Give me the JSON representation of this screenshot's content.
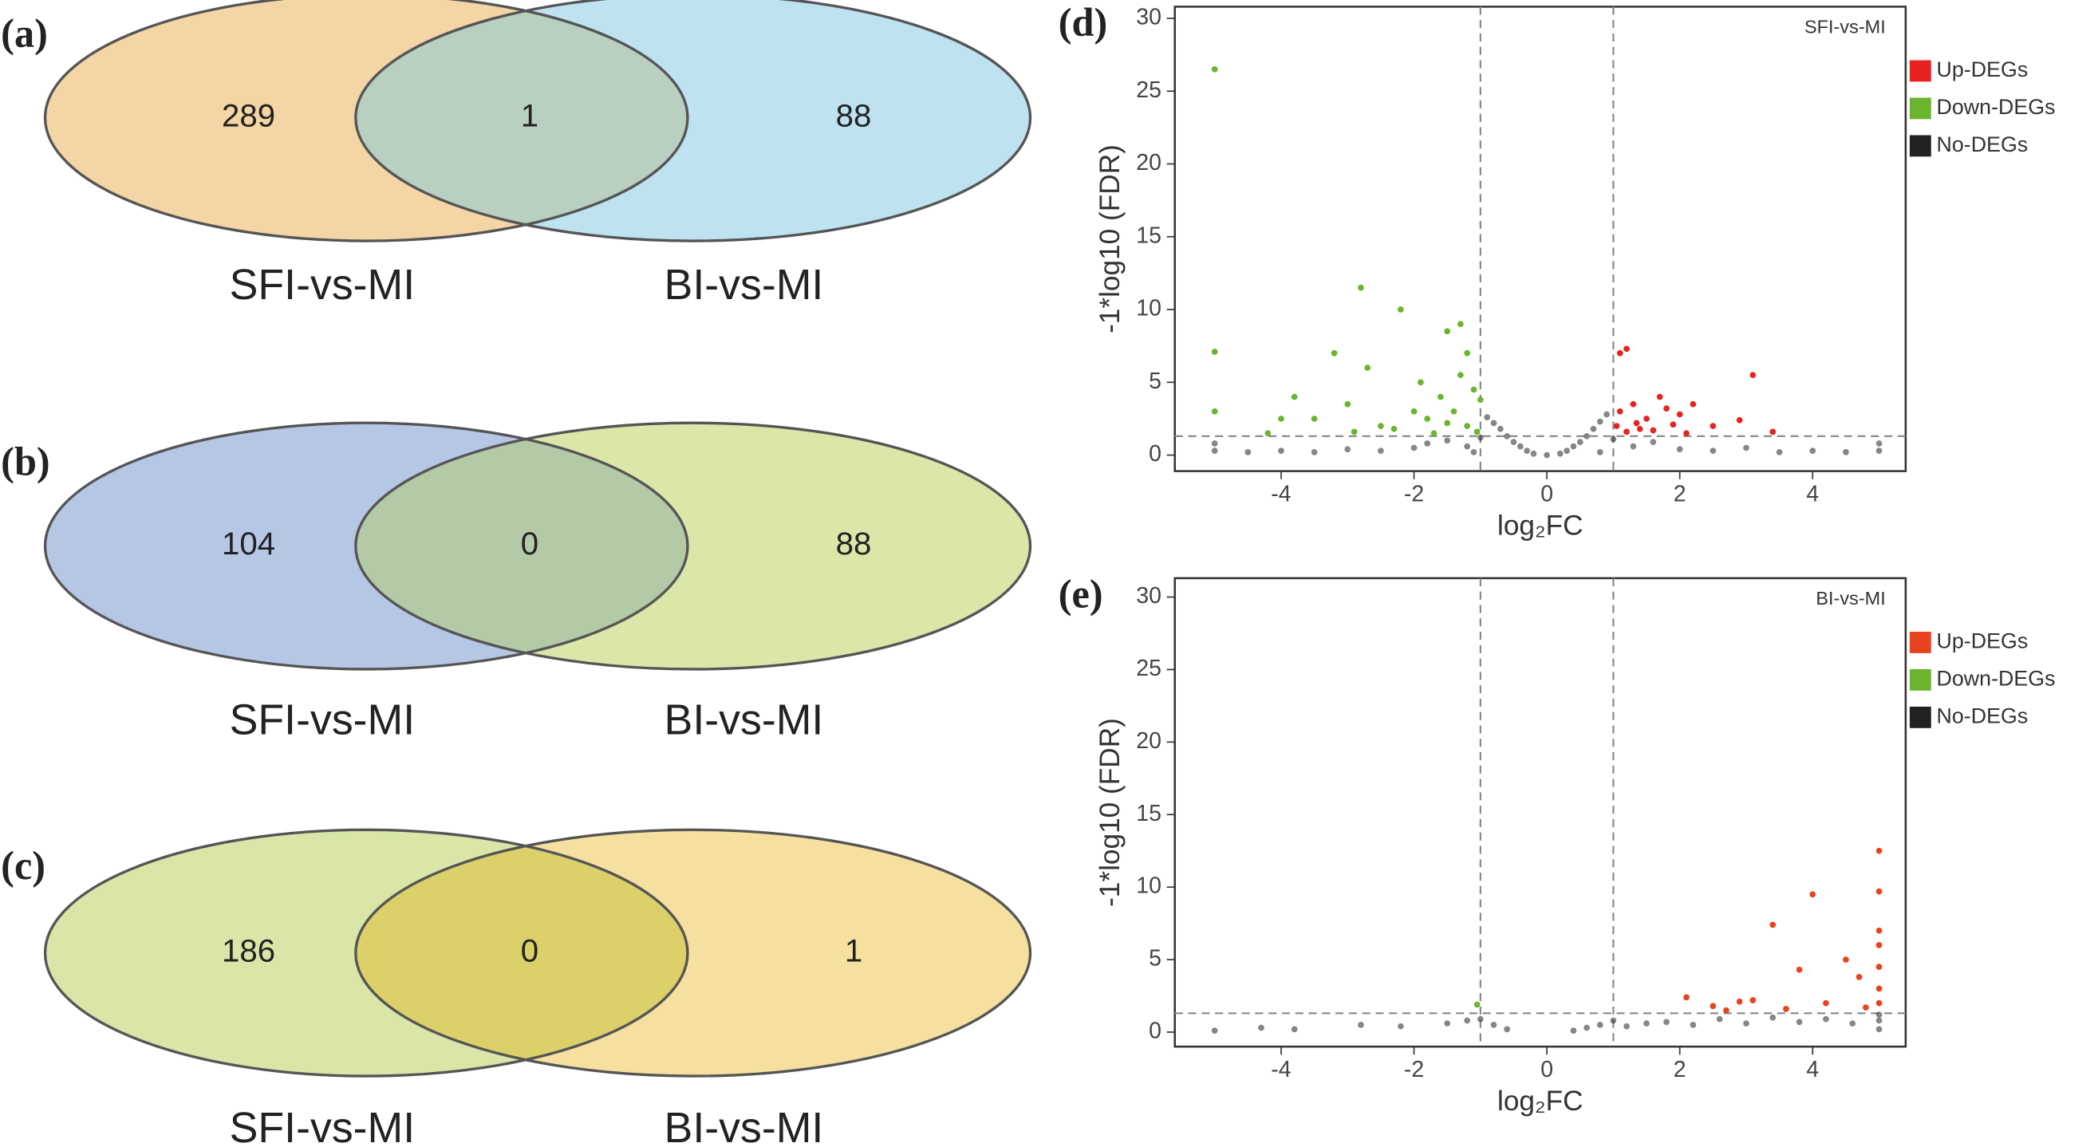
{
  "chart_data": [
    {
      "type": "venn",
      "panel": "(a)",
      "sets": [
        "SFI-vs-MI",
        "BI-vs-MI"
      ],
      "values": [
        289,
        1,
        88
      ],
      "colors": [
        "#f3d5a6",
        "#bfe2f0",
        "#b9cfc0"
      ]
    },
    {
      "type": "venn",
      "panel": "(b)",
      "sets": [
        "SFI-vs-MI",
        "BI-vs-MI"
      ],
      "values": [
        104,
        0,
        88
      ],
      "colors": [
        "#b6c7e6",
        "#dbe6a9",
        "#b4c9a6"
      ]
    },
    {
      "type": "venn",
      "panel": "(c)",
      "sets": [
        "SFI-vs-MI",
        "BI-vs-MI"
      ],
      "values": [
        186,
        0,
        1
      ],
      "colors": [
        "#d9e6a8",
        "#f5e0a0",
        "#dcd06a"
      ]
    },
    {
      "type": "scatter",
      "panel": "(d)",
      "annotation": "SFI-vs-MI",
      "xlabel": "log₂FC",
      "ylabel": "-1*log10 (FDR)",
      "xlim": [
        -5.6,
        5.4
      ],
      "ylim": [
        -1.1,
        30.8
      ],
      "xticks": [
        -4,
        -2,
        0,
        2,
        4
      ],
      "yticks": [
        0,
        5,
        10,
        15,
        20,
        25,
        30
      ],
      "vlines": [
        -1,
        1
      ],
      "hline": 1.3,
      "series": [
        {
          "name": "Up-DEGs",
          "color": "#e8231f",
          "x": [
            1.1,
            1.2,
            1.05,
            1.3,
            1.5,
            1.7,
            1.8,
            2,
            2.2,
            2.5,
            3.1,
            2.9,
            1.4,
            1.2,
            1.6,
            2.1,
            3.4,
            1.9,
            1.1,
            1.35
          ],
          "values": [
            7,
            7.3,
            2,
            3.5,
            2.5,
            4,
            3.2,
            2.8,
            3.5,
            2,
            5.5,
            2.4,
            1.8,
            1.6,
            1.7,
            1.5,
            1.6,
            2.1,
            3,
            2.2
          ]
        },
        {
          "name": "Down-DEGs",
          "color": "#6ab42f",
          "x": [
            -5,
            -5,
            -5,
            -4,
            -3.8,
            -3.2,
            -2.8,
            -2.7,
            -2.2,
            -1.9,
            -1.5,
            -1.3,
            -1.2,
            -1.6,
            -2,
            -2.5,
            -3,
            -3.5,
            -4.2,
            -1.1,
            -1.4,
            -1.8,
            -2.3,
            -1.2,
            -1.05,
            -1.7,
            -2.9,
            -1.3,
            -1,
            -1.5
          ],
          "values": [
            26.5,
            7.1,
            3,
            2.5,
            4,
            7,
            11.5,
            6,
            10,
            5,
            8.5,
            9,
            7,
            4,
            3,
            2,
            3.5,
            2.5,
            1.5,
            4.5,
            3,
            2.5,
            1.8,
            2,
            1.6,
            1.5,
            1.6,
            5.5,
            3.8,
            2.2
          ]
        },
        {
          "name": "No-DEGs",
          "color": "#222222",
          "x": [
            -5,
            -4.5,
            -4,
            -3.5,
            -3,
            -2.5,
            -2,
            -1.8,
            -1.5,
            -1.2,
            -1,
            -0.9,
            -0.8,
            -0.7,
            -0.6,
            -0.5,
            -0.4,
            -0.3,
            -0.2,
            0,
            0.2,
            0.3,
            0.4,
            0.5,
            0.6,
            0.7,
            0.8,
            0.9,
            1,
            1.3,
            1.6,
            2,
            2.5,
            3,
            3.5,
            4,
            4.5,
            5,
            5,
            -5,
            -1.1,
            0.8
          ],
          "values": [
            0.3,
            0.2,
            0.3,
            0.2,
            0.4,
            0.3,
            0.5,
            0.8,
            1,
            0.6,
            1.2,
            2.6,
            2.2,
            1.8,
            1.3,
            0.9,
            0.6,
            0.3,
            0.1,
            0,
            0.1,
            0.3,
            0.6,
            0.9,
            1.3,
            1.8,
            2.3,
            2.8,
            1.1,
            0.6,
            0.9,
            0.4,
            0.3,
            0.5,
            0.2,
            0.3,
            0.2,
            0.3,
            0.8,
            0.8,
            0.2,
            0.2
          ]
        }
      ]
    },
    {
      "type": "scatter",
      "panel": "(e)",
      "annotation": "BI-vs-MI",
      "xlabel": "log₂FC",
      "ylabel": "-1*log10 (FDR)",
      "xlim": [
        -5.6,
        5.4
      ],
      "ylim": [
        -1.0,
        31.3
      ],
      "xticks": [
        -4,
        -2,
        0,
        2,
        4
      ],
      "yticks": [
        0,
        5,
        10,
        15,
        20,
        25,
        30
      ],
      "vlines": [
        -1,
        1
      ],
      "hline": 1.3,
      "series": [
        {
          "name": "Up-DEGs",
          "color": "#e8431f",
          "x": [
            5,
            5,
            4,
            3.4,
            5,
            5,
            4.5,
            5,
            4.7,
            3.8,
            3.1,
            2.9,
            2.5,
            2.1,
            4.2,
            3.6,
            5,
            5,
            4.8,
            2.7
          ],
          "values": [
            12.5,
            9.7,
            9.5,
            7.4,
            7,
            6,
            5,
            4.5,
            3.8,
            4.3,
            2.2,
            2.1,
            1.8,
            2.4,
            2,
            1.6,
            3,
            2,
            1.7,
            1.5
          ]
        },
        {
          "name": "Down-DEGs",
          "color": "#6ab42f",
          "x": [
            -1.05
          ],
          "values": [
            1.9
          ]
        },
        {
          "name": "No-DEGs",
          "color": "#222222",
          "x": [
            -5,
            -4.3,
            -3.8,
            -2.8,
            -2.2,
            -1.5,
            -1.2,
            -1,
            -0.8,
            -0.6,
            0.4,
            0.6,
            0.8,
            1,
            1.2,
            1.5,
            1.8,
            2.2,
            2.6,
            3,
            3.4,
            3.8,
            4.2,
            4.6,
            5,
            5,
            5
          ],
          "values": [
            0.1,
            0.3,
            0.2,
            0.5,
            0.4,
            0.6,
            0.8,
            0.9,
            0.5,
            0.2,
            0.1,
            0.3,
            0.5,
            0.8,
            0.4,
            0.6,
            0.7,
            0.5,
            0.9,
            0.6,
            1,
            0.7,
            0.9,
            0.6,
            0.2,
            0.8,
            1.2
          ]
        }
      ]
    }
  ]
}
